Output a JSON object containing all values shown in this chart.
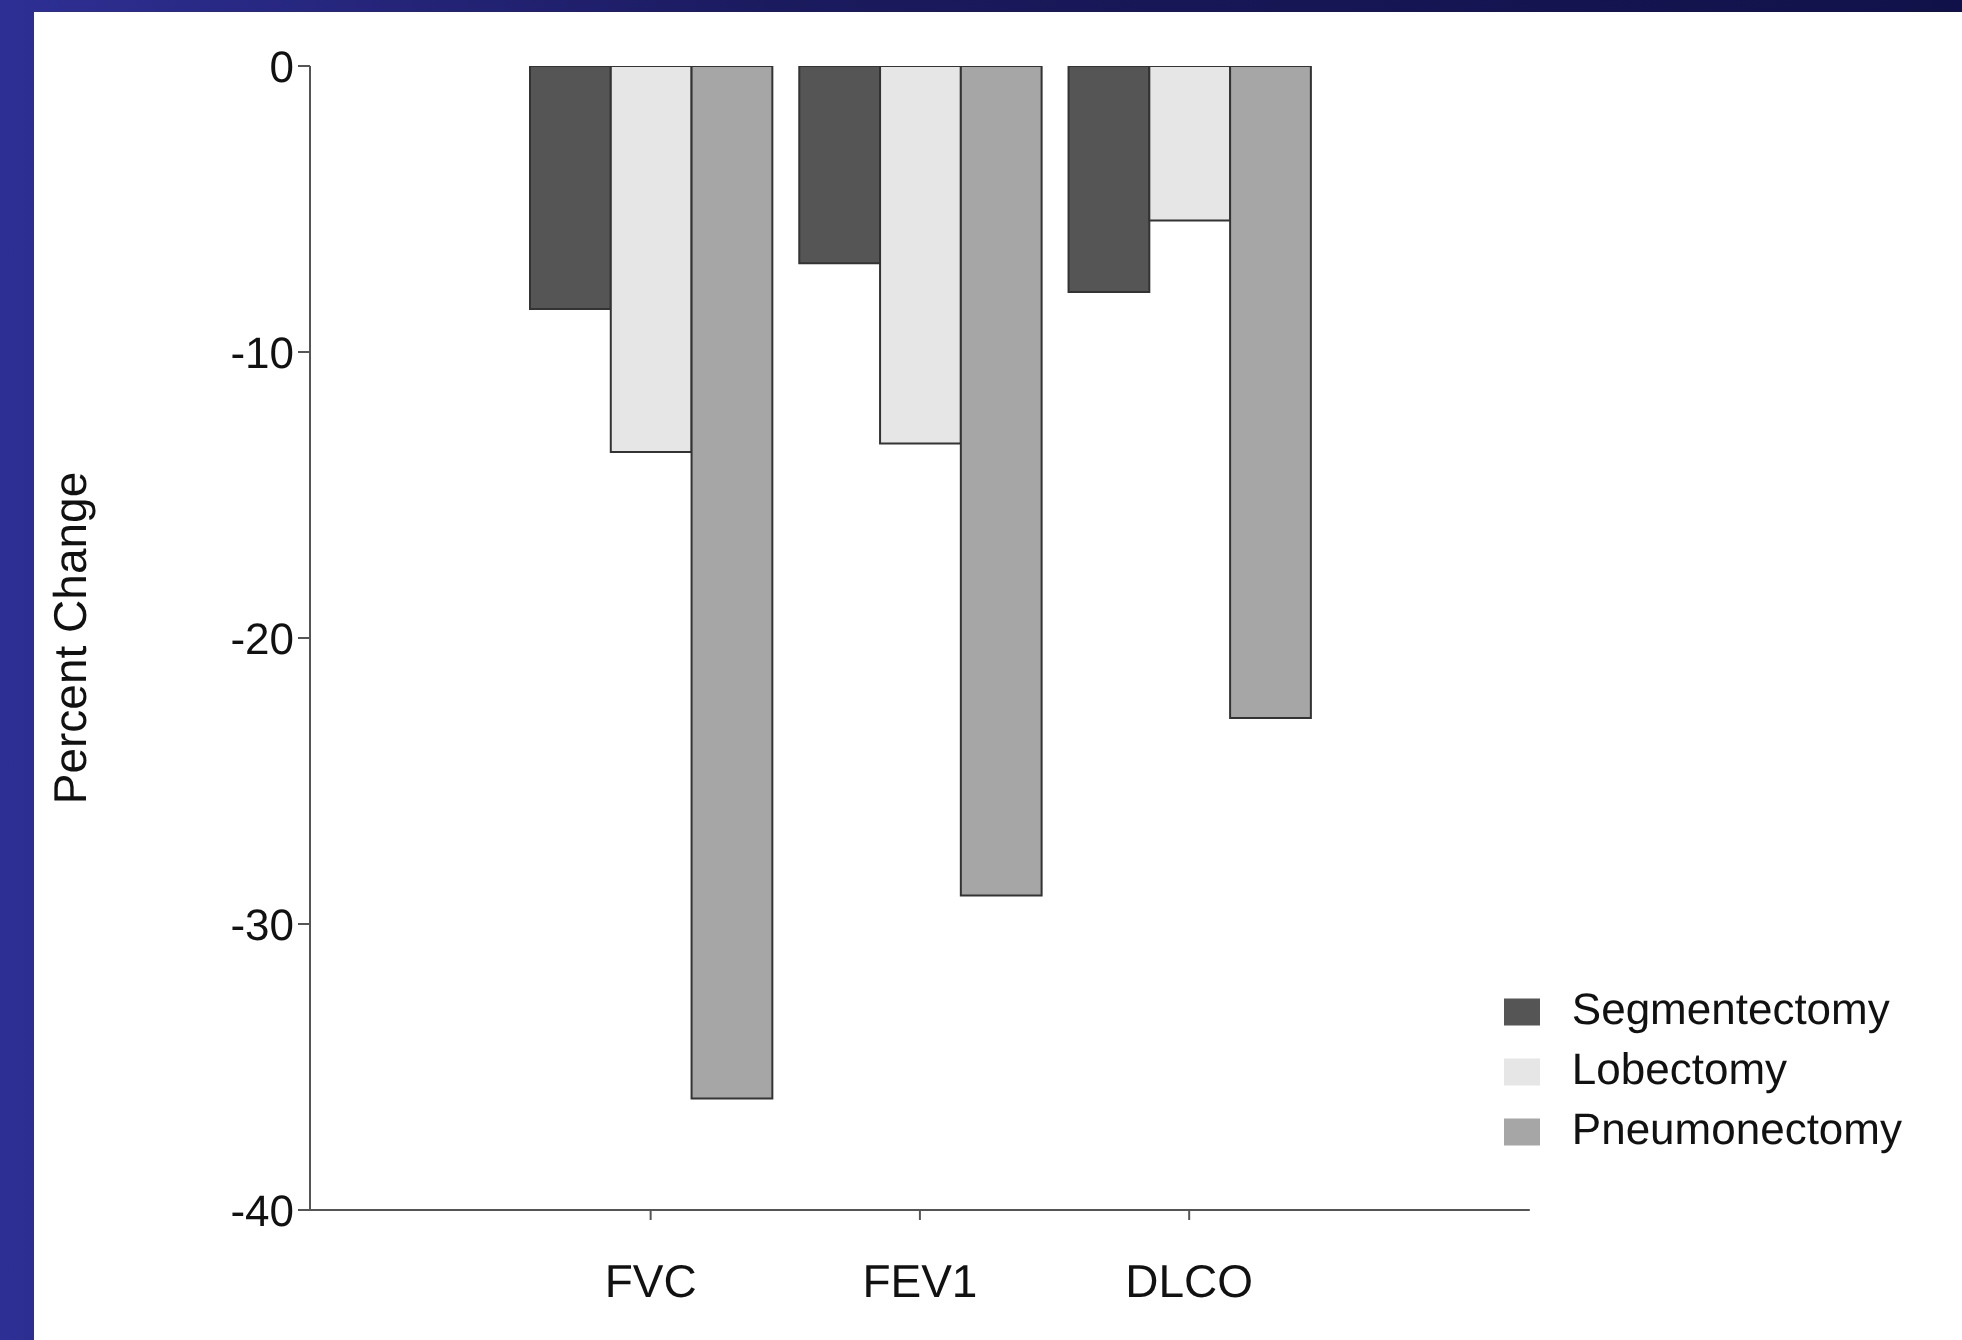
{
  "chart_data": {
    "type": "bar",
    "ylabel": "Percent Change",
    "categories": [
      "FVC",
      "FEV1",
      "DLCO"
    ],
    "series": [
      {
        "name": "Segmentectomy",
        "color": "#555555",
        "values": [
          -8.5,
          -6.9,
          -7.9
        ]
      },
      {
        "name": "Lobectomy",
        "color": "#e6e6e6",
        "values": [
          -13.5,
          -13.2,
          -5.4
        ]
      },
      {
        "name": "Pneumonectomy",
        "color": "#a6a6a6",
        "values": [
          -36.1,
          -29.0,
          -22.8
        ]
      }
    ],
    "ylim": [
      -40,
      0
    ],
    "yticks": [
      -40,
      -30,
      -20,
      -10,
      0
    ],
    "grid": false,
    "legend": "bottom right"
  }
}
